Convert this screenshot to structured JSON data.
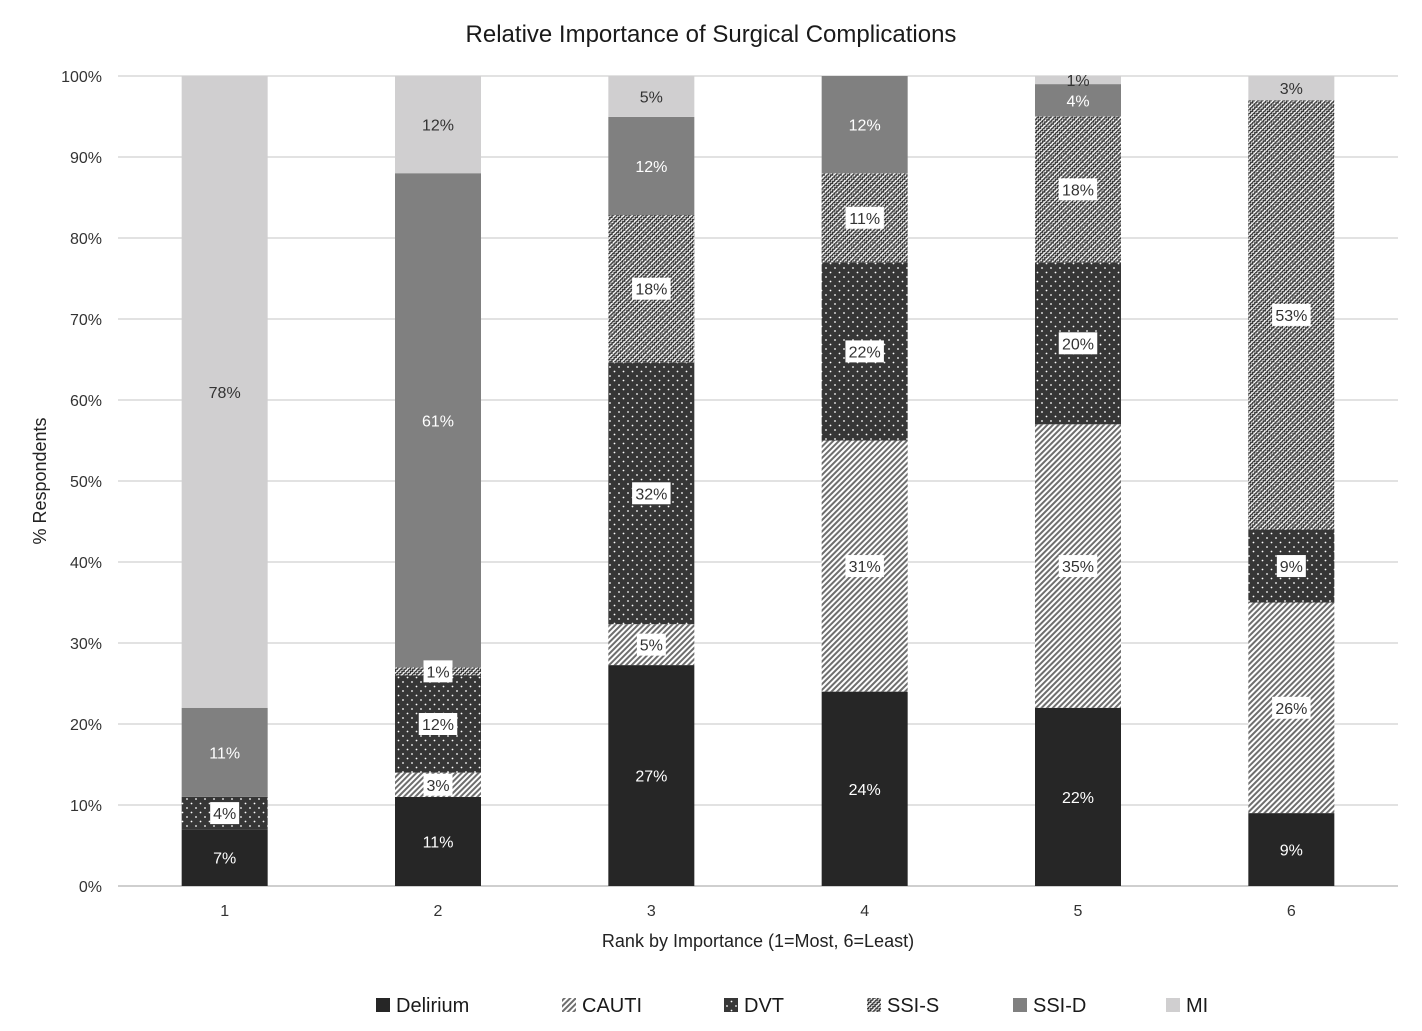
{
  "chart_data": {
    "type": "bar",
    "stacked": "percent",
    "title": "Relative Importance of Surgical Complications",
    "xlabel": "Rank by Importance (1=Most, 6=Least)",
    "ylabel": "% Respondents",
    "ylim": [
      0,
      100
    ],
    "yticks": [
      0,
      10,
      20,
      30,
      40,
      50,
      60,
      70,
      80,
      90,
      100
    ],
    "ytick_suffix": "%",
    "grid": true,
    "legend": "bottom",
    "categories": [
      "1",
      "2",
      "3",
      "4",
      "5",
      "6"
    ],
    "series": [
      {
        "name": "Delirium",
        "values": [
          7,
          11,
          27,
          24,
          22,
          9
        ],
        "labels": [
          "7%",
          "11%",
          "27%",
          "24%",
          "22%",
          "9%"
        ],
        "pattern": "solid-dark",
        "color": "#262626"
      },
      {
        "name": "CAUTI",
        "values": [
          0,
          3,
          5,
          31,
          35,
          26
        ],
        "labels": [
          "",
          "3%",
          "5%",
          "31%",
          "35%",
          "26%"
        ],
        "pattern": "diagonal-dense",
        "color": "#777777"
      },
      {
        "name": "DVT",
        "values": [
          4,
          12,
          32,
          22,
          20,
          9
        ],
        "labels": [
          "4%",
          "12%",
          "32%",
          "22%",
          "20%",
          "9%"
        ],
        "pattern": "dots-on-dark",
        "color": "#3a3a3a"
      },
      {
        "name": "SSI-S",
        "values": [
          0,
          1,
          18,
          11,
          18,
          53
        ],
        "labels": [
          "",
          "1%",
          "18%",
          "11%",
          "18%",
          "53%"
        ],
        "pattern": "diagonal-zigzag",
        "color": "#555555"
      },
      {
        "name": "SSI-D",
        "values": [
          11,
          61,
          12,
          12,
          4,
          0
        ],
        "labels": [
          "11%",
          "61%",
          "12%",
          "12%",
          "4%",
          ""
        ],
        "pattern": "solid-mid",
        "color": "#808080"
      },
      {
        "name": "MI",
        "values": [
          78,
          12,
          5,
          0,
          1,
          3
        ],
        "labels": [
          "78%",
          "12%",
          "5%",
          "",
          "1%",
          "3%"
        ],
        "pattern": "solid-light",
        "color": "#d0cfd0"
      }
    ]
  }
}
